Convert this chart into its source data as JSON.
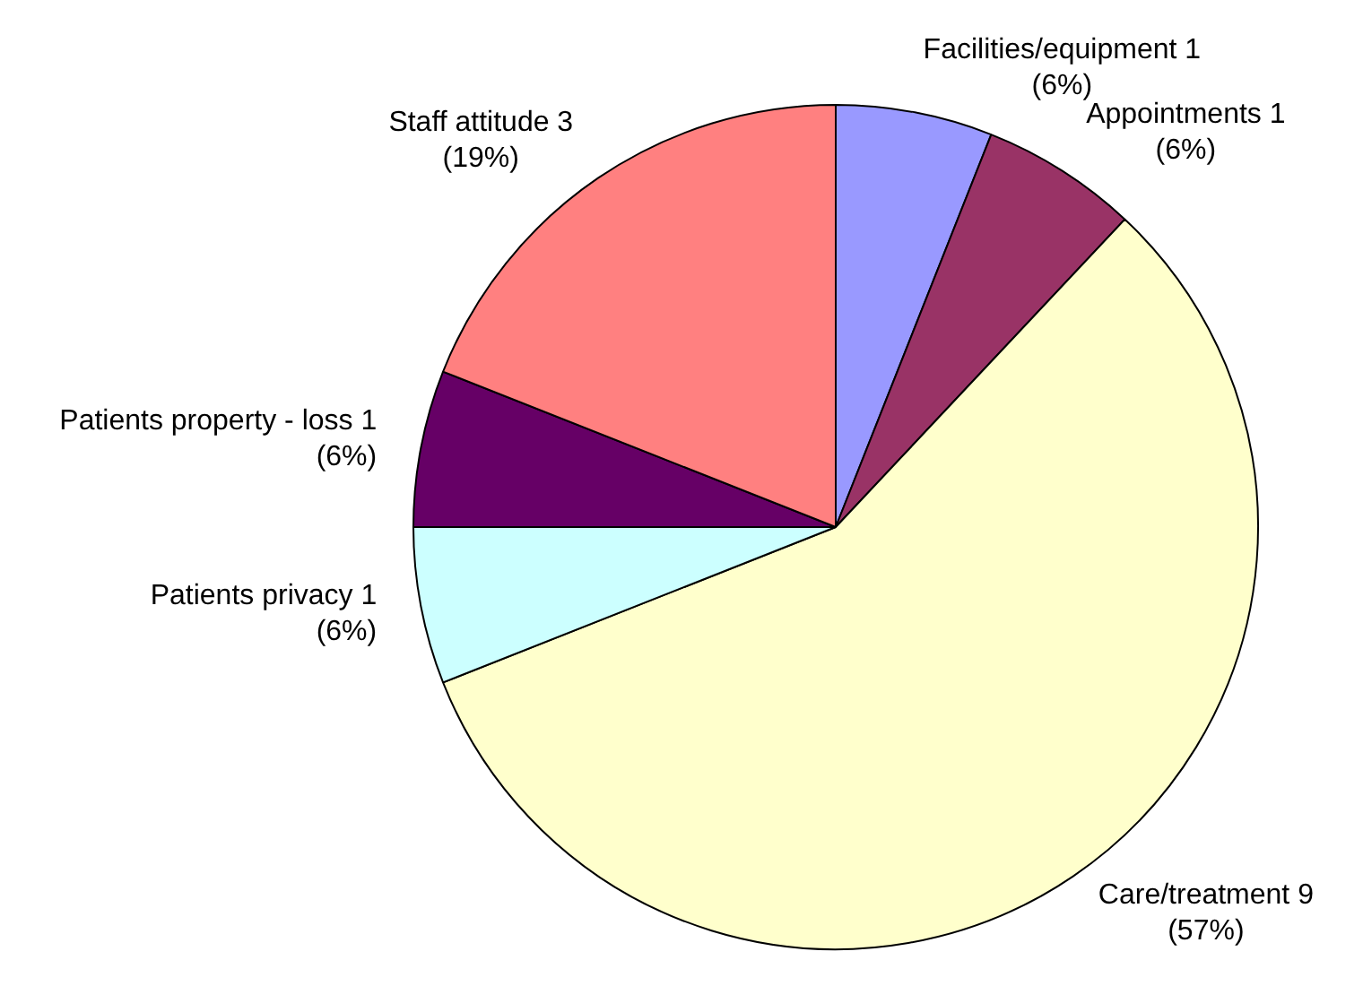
{
  "chart_data": {
    "type": "pie",
    "categories": [
      "Facilities/equipment 1",
      "Appointments 1",
      "Care/treatment 9",
      "Patients privacy 1",
      "Patients property - loss 1",
      "Staff attitude 3"
    ],
    "values": [
      6,
      6,
      57,
      6,
      6,
      19
    ],
    "colors": [
      "#9999ff",
      "#993366",
      "#ffffcc",
      "#ccffff",
      "#660066",
      "#ff8080"
    ],
    "value_labels": [
      "(6%)",
      "(6%)",
      "(57%)",
      "(6%)",
      "(6%)",
      "(19%)"
    ],
    "legend": false
  }
}
